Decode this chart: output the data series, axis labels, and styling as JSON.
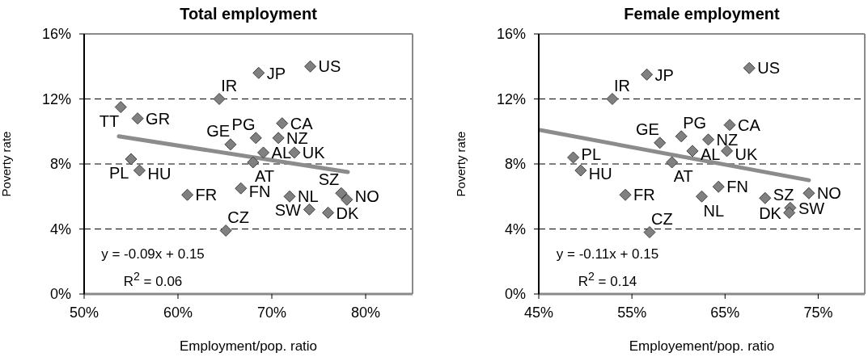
{
  "chart_data": [
    {
      "type": "scatter",
      "title": "Total employment",
      "xlabel": "Employment/pop. ratio",
      "ylabel": "Poverty rate",
      "annotations": [
        "y = -0.09x + 0.15",
        "R$^{2}$ = 0.06"
      ],
      "xlim": [
        50,
        85
      ],
      "xticks": [
        {
          "value": 50,
          "label": "50%"
        },
        {
          "value": 60,
          "label": "60%"
        },
        {
          "value": 70,
          "label": "70%"
        },
        {
          "value": 80,
          "label": "80%"
        }
      ],
      "ylim": [
        0,
        16
      ],
      "yticks": [
        {
          "value": 0,
          "label": "0%"
        },
        {
          "value": 4,
          "label": "4%"
        },
        {
          "value": 8,
          "label": "8%"
        },
        {
          "value": 12,
          "label": "12%"
        },
        {
          "value": 16,
          "label": "16%"
        }
      ],
      "grid": "y",
      "series": [
        {
          "type": "scatter",
          "color": "#808080",
          "marker": "diamond",
          "x": [
            53.9,
            55.7,
            55.0,
            55.9,
            64.4,
            68.6,
            74.1,
            68.3,
            71.1,
            70.7,
            72.4,
            65.6,
            69.1,
            68.0,
            66.7,
            61.0,
            71.9,
            74.0,
            76.0,
            77.4,
            78.0,
            65.1
          ],
          "values": [
            11.5,
            10.8,
            8.3,
            7.6,
            12.0,
            13.6,
            14.0,
            9.6,
            10.5,
            9.6,
            8.7,
            9.2,
            8.7,
            8.1,
            6.5,
            6.1,
            6.0,
            5.2,
            5.0,
            6.2,
            5.8,
            3.9
          ],
          "value_labels": [
            "TT",
            "GR",
            "PL",
            "HU",
            "IR",
            "JP",
            "US",
            "PG",
            "CA",
            "NZ",
            "UK",
            "GE",
            "AL",
            "AT",
            "FN",
            "FR",
            "NL",
            "SW",
            "DK",
            "SZ",
            "NO",
            "CZ"
          ]
        },
        {
          "type": "line",
          "color": "#8c8c8c",
          "x": [
            53.7,
            78.1
          ],
          "values": [
            9.7,
            7.5
          ]
        }
      ]
    },
    {
      "type": "scatter",
      "title": "Female employment",
      "xlabel": "Employement/pop. ratio",
      "ylabel": "Poverty rate",
      "annotations": [
        "y = -0.11x + 0.15",
        "R$^{2}$ = 0.14"
      ],
      "xlim": [
        45,
        80
      ],
      "xticks": [
        {
          "value": 45,
          "label": "45%"
        },
        {
          "value": 55,
          "label": "55%"
        },
        {
          "value": 65,
          "label": "65%"
        },
        {
          "value": 75,
          "label": "75%"
        }
      ],
      "ylim": [
        0,
        16
      ],
      "yticks": [
        {
          "value": 0,
          "label": "0%"
        },
        {
          "value": 4,
          "label": "4%"
        },
        {
          "value": 8,
          "label": "8%"
        },
        {
          "value": 12,
          "label": "12%"
        },
        {
          "value": 16,
          "label": "16%"
        }
      ],
      "grid": "y",
      "series": [
        {
          "type": "scatter",
          "color": "#808080",
          "marker": "diamond",
          "x": [
            48.7,
            49.5,
            52.9,
            56.6,
            67.6,
            60.3,
            65.5,
            63.2,
            65.2,
            58.0,
            61.5,
            59.3,
            64.3,
            54.3,
            62.5,
            72.0,
            71.9,
            69.3,
            74.0,
            56.9
          ],
          "values": [
            8.4,
            7.6,
            12.0,
            13.5,
            13.9,
            9.7,
            10.4,
            9.5,
            8.8,
            9.3,
            8.8,
            8.1,
            6.6,
            6.1,
            6.0,
            5.3,
            5.0,
            5.9,
            6.2,
            3.8
          ],
          "value_labels": [
            "PL",
            "HU",
            "IR",
            "JP",
            "US",
            "PG",
            "CA",
            "NZ",
            "UK",
            "GE",
            "AL",
            "AT",
            "FN",
            "FR",
            "NL",
            "SW",
            "DK",
            "SZ",
            "NO",
            "CZ"
          ]
        },
        {
          "type": "line",
          "color": "#8c8c8c",
          "x": [
            45.0,
            74.0
          ],
          "values": [
            10.1,
            7.0
          ]
        }
      ]
    }
  ]
}
